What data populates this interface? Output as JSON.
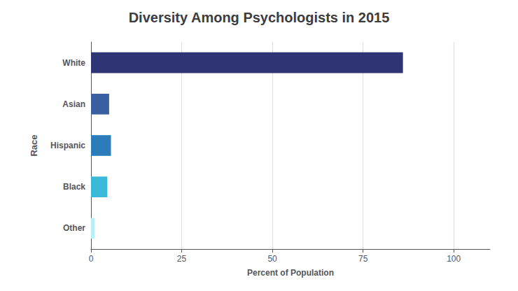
{
  "chart_data": {
    "type": "bar",
    "orientation": "horizontal",
    "title": "Diversity Among Psychologists in 2015",
    "categories": [
      "White",
      "Asian",
      "Hispanic",
      "Black",
      "Other"
    ],
    "values": [
      86,
      5,
      5.5,
      4.5,
      1
    ],
    "colors": [
      "#2e3474",
      "#3a5fa0",
      "#2b7cb8",
      "#3ab8d8",
      "#b8eef5"
    ],
    "xlabel": "Percent of Population",
    "ylabel": "Race",
    "xlim": [
      0,
      110
    ],
    "xticks": [
      0,
      25,
      50,
      75,
      100
    ],
    "grid": true
  }
}
